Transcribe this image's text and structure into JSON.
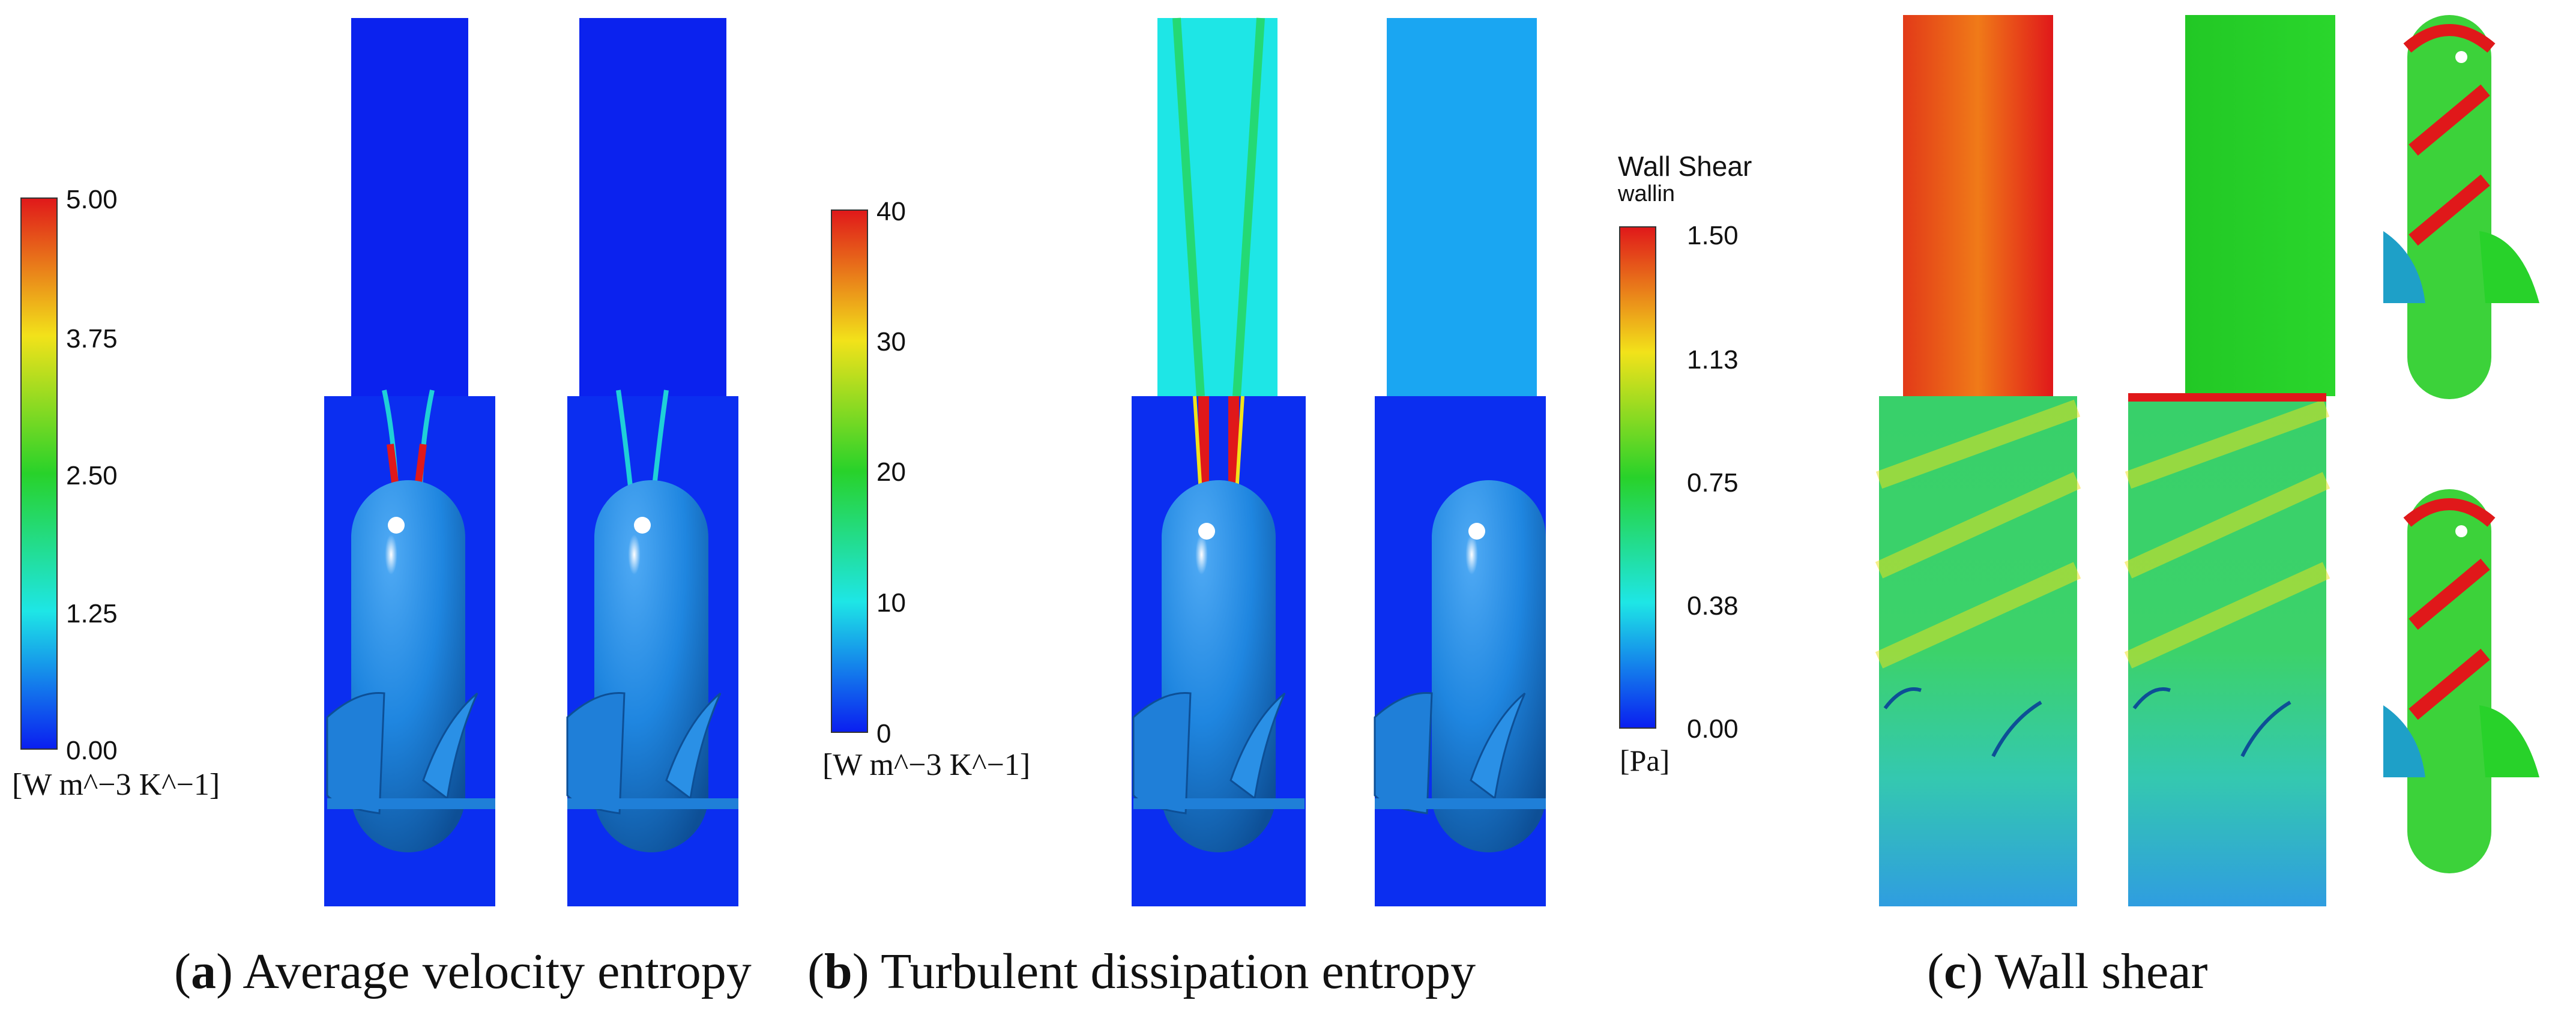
{
  "legend_a": {
    "ticks": [
      "5.00",
      "3.75",
      "2.50",
      "1.25",
      "0.00"
    ],
    "unit": "[W m^−3 K^−1]"
  },
  "legend_b": {
    "ticks": [
      "40",
      "30",
      "20",
      "10",
      "0"
    ],
    "unit": "[W m^−3 K^−1]"
  },
  "legend_c": {
    "title": "Wall Shear",
    "subtitle": "wallin",
    "ticks": [
      "1.50",
      "1.13",
      "0.75",
      "0.38",
      "0.00"
    ],
    "unit": "[Pa]"
  },
  "captions": {
    "a_letter": "a",
    "a_text": " Average velocity entropy",
    "b_letter": "b",
    "b_text": " Turbulent dissipation entropy",
    "c_letter": "c",
    "c_text": " Wall shear"
  },
  "colors": {
    "jet_red": "#e0181a",
    "jet_yellow": "#f2e21a",
    "jet_green": "#28d22a",
    "jet_cyan": "#1ee6e6",
    "jet_blue": "#0a1ef0",
    "body_blue": "#1f86e0"
  }
}
